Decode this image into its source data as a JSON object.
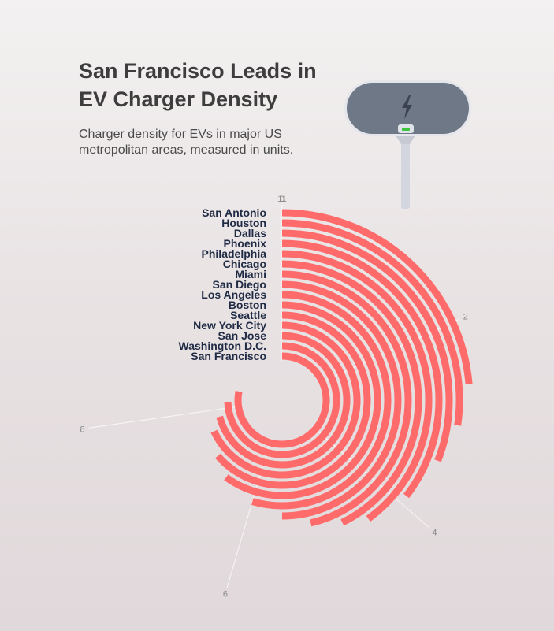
{
  "header": {
    "title": "San Francisco Leads in EV Charger Density",
    "subtitle": "Charger density for EVs in major US metropolitan areas, measured in units."
  },
  "icons": {
    "illustration": "ev-charger-plug-icon"
  },
  "colors": {
    "bar": "#ff6b6b",
    "label": "#1f2a44",
    "tick": "#8a8a8a",
    "plug_body": "#6f7886"
  },
  "chart_data": {
    "type": "bar",
    "layout": "radial",
    "title": "San Francisco Leads in EV Charger Density",
    "subtitle": "Charger density for EVs in major US metropolitan areas, measured in units.",
    "categories": [
      "San Antonio",
      "Houston",
      "Dallas",
      "Phoenix",
      "Philadelphia",
      "Chicago",
      "Miami",
      "San Diego",
      "Los Angeles",
      "Boston",
      "Seattle",
      "New York City",
      "San Jose",
      "Washington D.C.",
      "San Francisco"
    ],
    "values": [
      2.6,
      3.0,
      3.4,
      3.9,
      4.4,
      4.7,
      5.1,
      5.5,
      6.0,
      6.6,
      7.0,
      7.5,
      7.8,
      8.2,
      8.6
    ],
    "ylim": [
      0,
      11
    ],
    "axis_ticks": [
      0,
      2,
      4,
      6,
      8,
      11
    ],
    "grid": false,
    "legend": "none"
  }
}
